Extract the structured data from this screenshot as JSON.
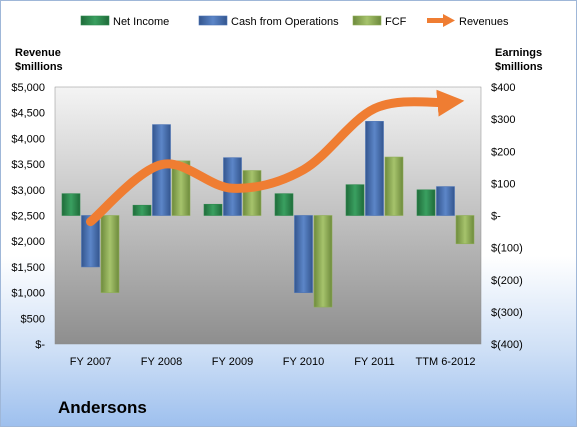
{
  "company": "Andersons",
  "chart_data": {
    "type": "bar",
    "categories": [
      "FY 2007",
      "FY 2008",
      "FY 2009",
      "FY 2010",
      "FY 2011",
      "TTM 6-2012"
    ],
    "left_axis": {
      "title_line1": "Revenue",
      "title_line2": "$millions",
      "range": [
        0,
        5000
      ],
      "ticks": [
        0,
        500,
        1000,
        1500,
        2000,
        2500,
        3000,
        3500,
        4000,
        4500,
        5000
      ],
      "tick_labels": [
        "$-",
        "$500",
        "$1,000",
        "$1,500",
        "$2,000",
        "$2,500",
        "$3,000",
        "$3,500",
        "$4,000",
        "$4,500",
        "$5,000"
      ]
    },
    "right_axis": {
      "title_line1": "Earnings",
      "title_line2": "$millions",
      "range": [
        -400,
        400
      ],
      "ticks": [
        -400,
        -300,
        -200,
        -100,
        0,
        100,
        200,
        300,
        400
      ],
      "tick_labels": [
        "$(400)",
        "$(300)",
        "$(200)",
        "$(100)",
        "$-",
        "$100",
        "$200",
        "$300",
        "$400"
      ]
    },
    "series": [
      {
        "name": "Net Income",
        "axis": "right",
        "kind": "bar",
        "color": "#2f8a4f",
        "values": [
          68,
          32,
          35,
          68,
          96,
          80
        ]
      },
      {
        "name": "Cash from Operations",
        "axis": "right",
        "kind": "bar",
        "color": "#4a72b4",
        "values": [
          -160,
          283,
          180,
          -240,
          293,
          90
        ]
      },
      {
        "name": "FCF",
        "axis": "right",
        "kind": "bar",
        "color": "#8fae58",
        "values": [
          -240,
          170,
          140,
          -285,
          182,
          -88
        ]
      },
      {
        "name": "Revenues",
        "axis": "left",
        "kind": "line",
        "color": "#ef7d32",
        "values": [
          2380,
          3490,
          3030,
          3390,
          4580,
          4700
        ]
      }
    ],
    "grid": false,
    "legend_position": "top"
  }
}
